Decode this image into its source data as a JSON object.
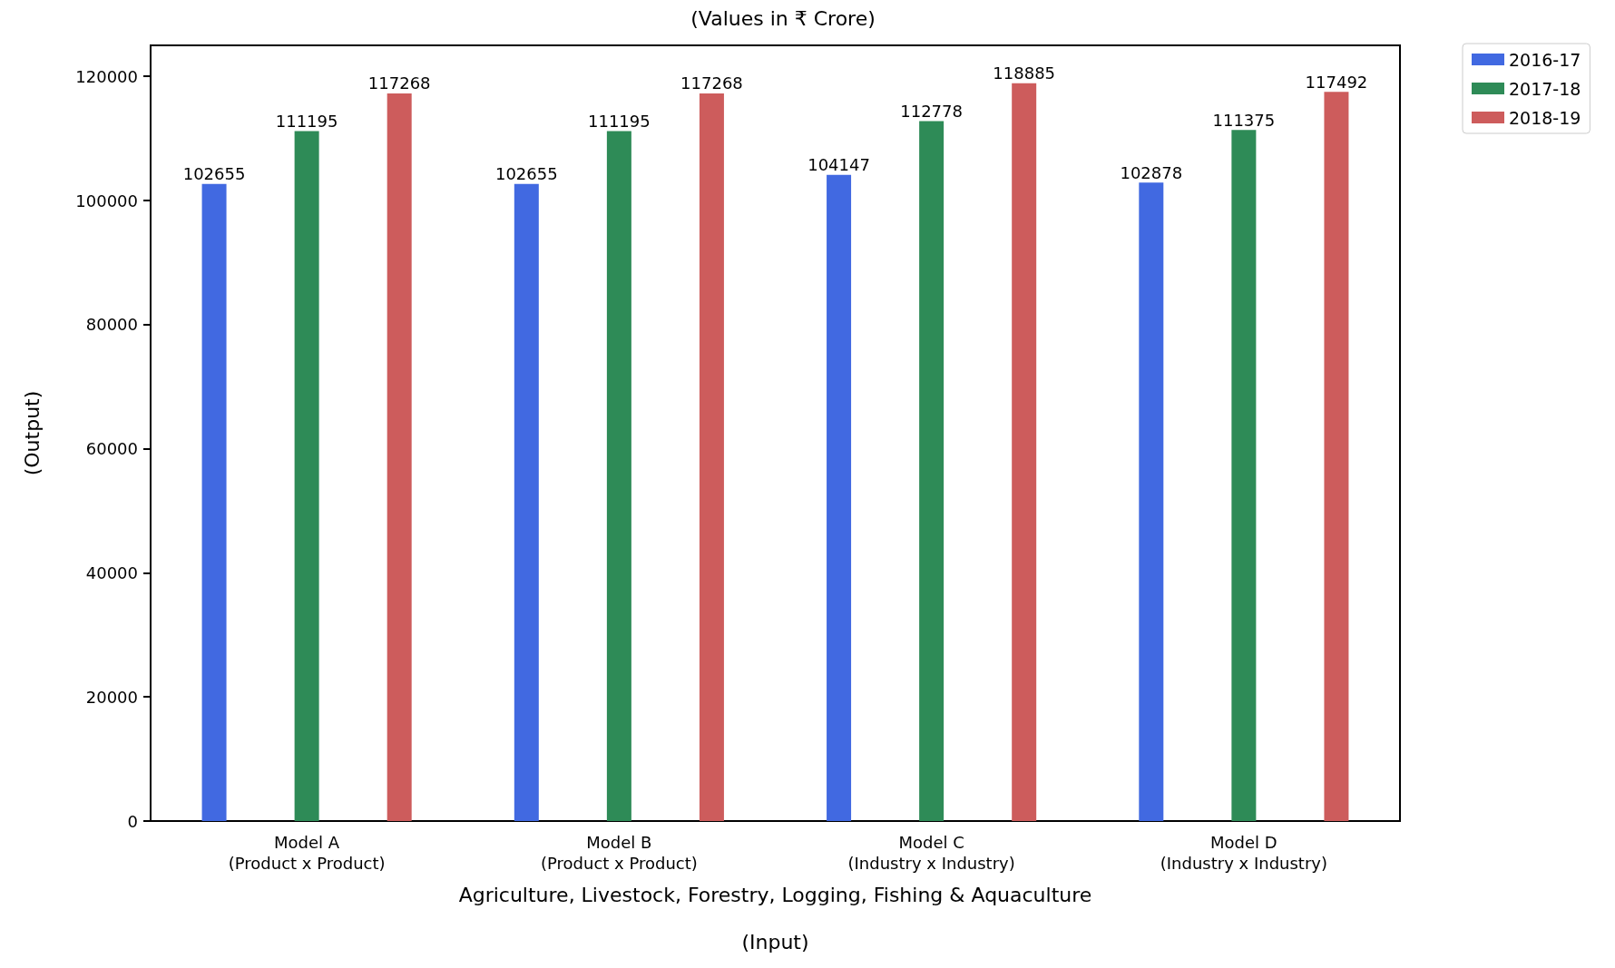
{
  "chart_data": {
    "type": "bar",
    "title": "(Values in ₹ Crore)",
    "xlabel": "Agriculture, Livestock, Forestry, Logging, Fishing & Aquaculture\n\n(Input)",
    "ylabel": "(Output)",
    "categories": [
      "Model A\n(Product x Product)",
      "Model B\n(Product x Product)",
      "Model C\n(Industry x Industry)",
      "Model D\n(Industry x Industry)"
    ],
    "series": [
      {
        "name": "2016-17",
        "color": "#4169e1",
        "values": [
          102655,
          102655,
          104147,
          102878
        ]
      },
      {
        "name": "2017-18",
        "color": "#2e8b57",
        "values": [
          111195,
          111195,
          112778,
          111375
        ]
      },
      {
        "name": "2018-19",
        "color": "#cd5c5c",
        "values": [
          117268,
          117268,
          118885,
          117492
        ]
      }
    ],
    "ylim": [
      0,
      125000
    ],
    "yticks": [
      0,
      20000,
      40000,
      60000,
      80000,
      100000,
      120000
    ],
    "grid": false,
    "legend": "top right",
    "data_labels": true
  }
}
